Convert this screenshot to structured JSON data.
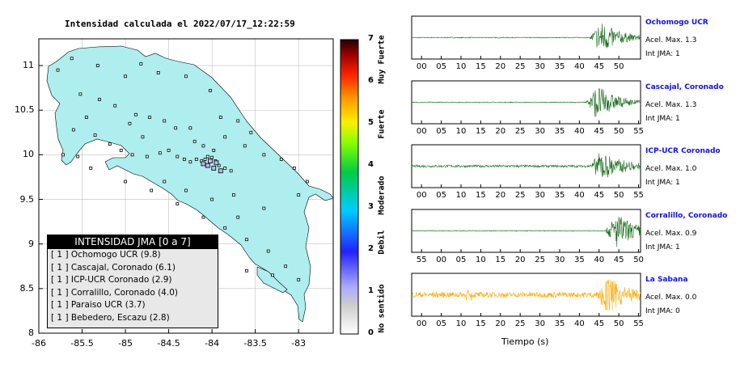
{
  "title": "Intensidad calculada el 2022/07/17_12:22:59",
  "chart_data": [
    {
      "type": "map",
      "xlim": [
        -86,
        -82.6
      ],
      "ylim": [
        8,
        11.3
      ],
      "x_ticks": [
        "-86",
        "-85.5",
        "-85",
        "-84.5",
        "-84",
        "-83.5",
        "-83"
      ],
      "y_ticks": [
        "8",
        "8.5",
        "9",
        "9.5",
        "10",
        "10.5",
        "11"
      ],
      "colorbar": {
        "range": [
          0,
          7
        ],
        "ticks": [
          "0",
          "1",
          "2",
          "3",
          "4",
          "5",
          "6",
          "7"
        ],
        "labels": [
          "No sentido",
          "Debil",
          "Moderado",
          "Fuerte",
          "Muy Fuerte"
        ]
      },
      "legend": {
        "title": "INTENSIDAD JMA [0 a 7]",
        "entries": [
          {
            "int": "[ 1 ]",
            "text": "Ochomogo UCR (9.8)"
          },
          {
            "int": "[ 1 ]",
            "text": "Cascajal, Coronado (6.1)"
          },
          {
            "int": "[ 1 ]",
            "text": "ICP-UCR Coronado (2.9)"
          },
          {
            "int": "[ 1 ]",
            "text": "Corralillo, Coronado (4.0)"
          },
          {
            "int": "[ 1 ]",
            "text": "Paraiso UCR (3.7)"
          },
          {
            "int": "[ 1 ]",
            "text": "Bebedero, Escazu (2.8)"
          }
        ]
      },
      "stations": [
        [
          -85.62,
          11.08
        ],
        [
          -85.78,
          10.95
        ],
        [
          -85.32,
          11.0
        ],
        [
          -85.0,
          10.88
        ],
        [
          -84.82,
          11.02
        ],
        [
          -84.62,
          10.92
        ],
        [
          -84.3,
          10.88
        ],
        [
          -84.02,
          10.72
        ],
        [
          -85.52,
          10.68
        ],
        [
          -85.3,
          10.62
        ],
        [
          -85.12,
          10.55
        ],
        [
          -84.88,
          10.45
        ],
        [
          -84.72,
          10.42
        ],
        [
          -84.55,
          10.38
        ],
        [
          -84.42,
          10.3
        ],
        [
          -84.25,
          10.3
        ],
        [
          -83.9,
          10.42
        ],
        [
          -83.7,
          10.38
        ],
        [
          -85.45,
          10.42
        ],
        [
          -85.6,
          10.28
        ],
        [
          -85.35,
          10.22
        ],
        [
          -85.18,
          10.12
        ],
        [
          -85.05,
          10.05
        ],
        [
          -84.92,
          10.0
        ],
        [
          -84.75,
          9.98
        ],
        [
          -84.6,
          10.02
        ],
        [
          -84.5,
          10.05
        ],
        [
          -84.4,
          9.98
        ],
        [
          -84.32,
          9.95
        ],
        [
          -84.25,
          9.92
        ],
        [
          -84.18,
          9.95
        ],
        [
          -84.12,
          9.93
        ],
        [
          -84.08,
          9.95
        ],
        [
          -84.05,
          9.98
        ],
        [
          -84.0,
          9.97
        ],
        [
          -83.96,
          9.93
        ],
        [
          -83.92,
          9.88
        ],
        [
          -83.85,
          9.85
        ],
        [
          -83.78,
          9.82
        ],
        [
          -83.98,
          10.05
        ],
        [
          -84.1,
          10.1
        ],
        [
          -84.2,
          10.15
        ],
        [
          -83.62,
          10.1
        ],
        [
          -83.4,
          10.0
        ],
        [
          -83.2,
          9.95
        ],
        [
          -83.05,
          9.85
        ],
        [
          -85.72,
          10.0
        ],
        [
          -85.55,
          9.98
        ],
        [
          -85.4,
          9.85
        ],
        [
          -85.0,
          9.7
        ],
        [
          -84.7,
          9.6
        ],
        [
          -84.4,
          9.45
        ],
        [
          -84.1,
          9.3
        ],
        [
          -83.85,
          9.18
        ],
        [
          -83.6,
          9.05
        ],
        [
          -83.35,
          8.92
        ],
        [
          -83.15,
          8.75
        ],
        [
          -83.0,
          8.6
        ],
        [
          -83.3,
          8.65
        ],
        [
          -83.6,
          8.7
        ],
        [
          -83.7,
          9.3
        ],
        [
          -83.4,
          9.4
        ],
        [
          -83.0,
          9.55
        ],
        [
          -82.9,
          9.7
        ],
        [
          -84.55,
          9.7
        ],
        [
          -84.3,
          9.6
        ],
        [
          -84.0,
          9.5
        ],
        [
          -83.75,
          9.55
        ],
        [
          -84.8,
          10.2
        ],
        [
          -84.95,
          10.35
        ],
        [
          -83.85,
          10.2
        ],
        [
          -83.55,
          10.25
        ]
      ],
      "highlight_stations": [
        [
          -83.95,
          9.91
        ],
        [
          -84.02,
          9.93
        ],
        [
          -84.05,
          9.88
        ],
        [
          -84.1,
          9.9
        ],
        [
          -83.98,
          9.85
        ],
        [
          -83.9,
          9.82
        ]
      ]
    },
    {
      "type": "line",
      "xlabel": "Tiempo (s)",
      "traces": [
        {
          "name": "Ochomogo UCR",
          "pga": "Acel. Max. 1.3",
          "jma": "Int JMA: 1",
          "color": "#1a6e1a",
          "ticks": [
            "00",
            "05",
            "10",
            "15",
            "20",
            "25",
            "30",
            "35",
            "40",
            "45",
            "50"
          ],
          "tick_start": 0,
          "arrival": 42.5,
          "noise": 0.02,
          "amp": 0.85
        },
        {
          "name": "Cascajal, Coronado",
          "pga": "Acel. Max. 1.3",
          "jma": "Int JMA: 1",
          "color": "#1a6e1a",
          "ticks": [
            "00",
            "05",
            "10",
            "15",
            "20",
            "25",
            "30",
            "35",
            "40",
            "45",
            "50",
            "55"
          ],
          "tick_start": 0,
          "arrival": 41.5,
          "noise": 0.02,
          "amp": 0.9
        },
        {
          "name": "ICP-UCR Coronado",
          "pga": "Acel. Max. 1.0",
          "jma": "Int JMA: 1",
          "color": "#1a6e1a",
          "ticks": [
            "00",
            "05",
            "10",
            "15",
            "20",
            "25",
            "30",
            "35",
            "40",
            "45",
            "50",
            "55"
          ],
          "tick_start": 0,
          "arrival": 42.5,
          "noise": 0.06,
          "amp": 0.85
        },
        {
          "name": "Corralillo, Coronado",
          "pga": "Acel. Max. 0.9",
          "jma": "Int JMA: 1",
          "color": "#1a6e1a",
          "ticks": [
            "55",
            "00",
            "05",
            "10",
            "15",
            "20",
            "25",
            "30",
            "35",
            "40",
            "45",
            "50"
          ],
          "tick_start": -5,
          "arrival": 41.5,
          "noise": 0.02,
          "amp": 0.9
        },
        {
          "name": "La Sabana",
          "pga": "Acel. Max. 0.0",
          "jma": "Int JMA: 0",
          "color": "#ffaa00",
          "ticks": [
            "00",
            "05",
            "10",
            "15",
            "20",
            "25",
            "30",
            "35",
            "40",
            "45",
            "50",
            "55"
          ],
          "tick_start": 0,
          "arrival": 44.0,
          "noise": 0.14,
          "amp": 0.95
        }
      ]
    }
  ]
}
